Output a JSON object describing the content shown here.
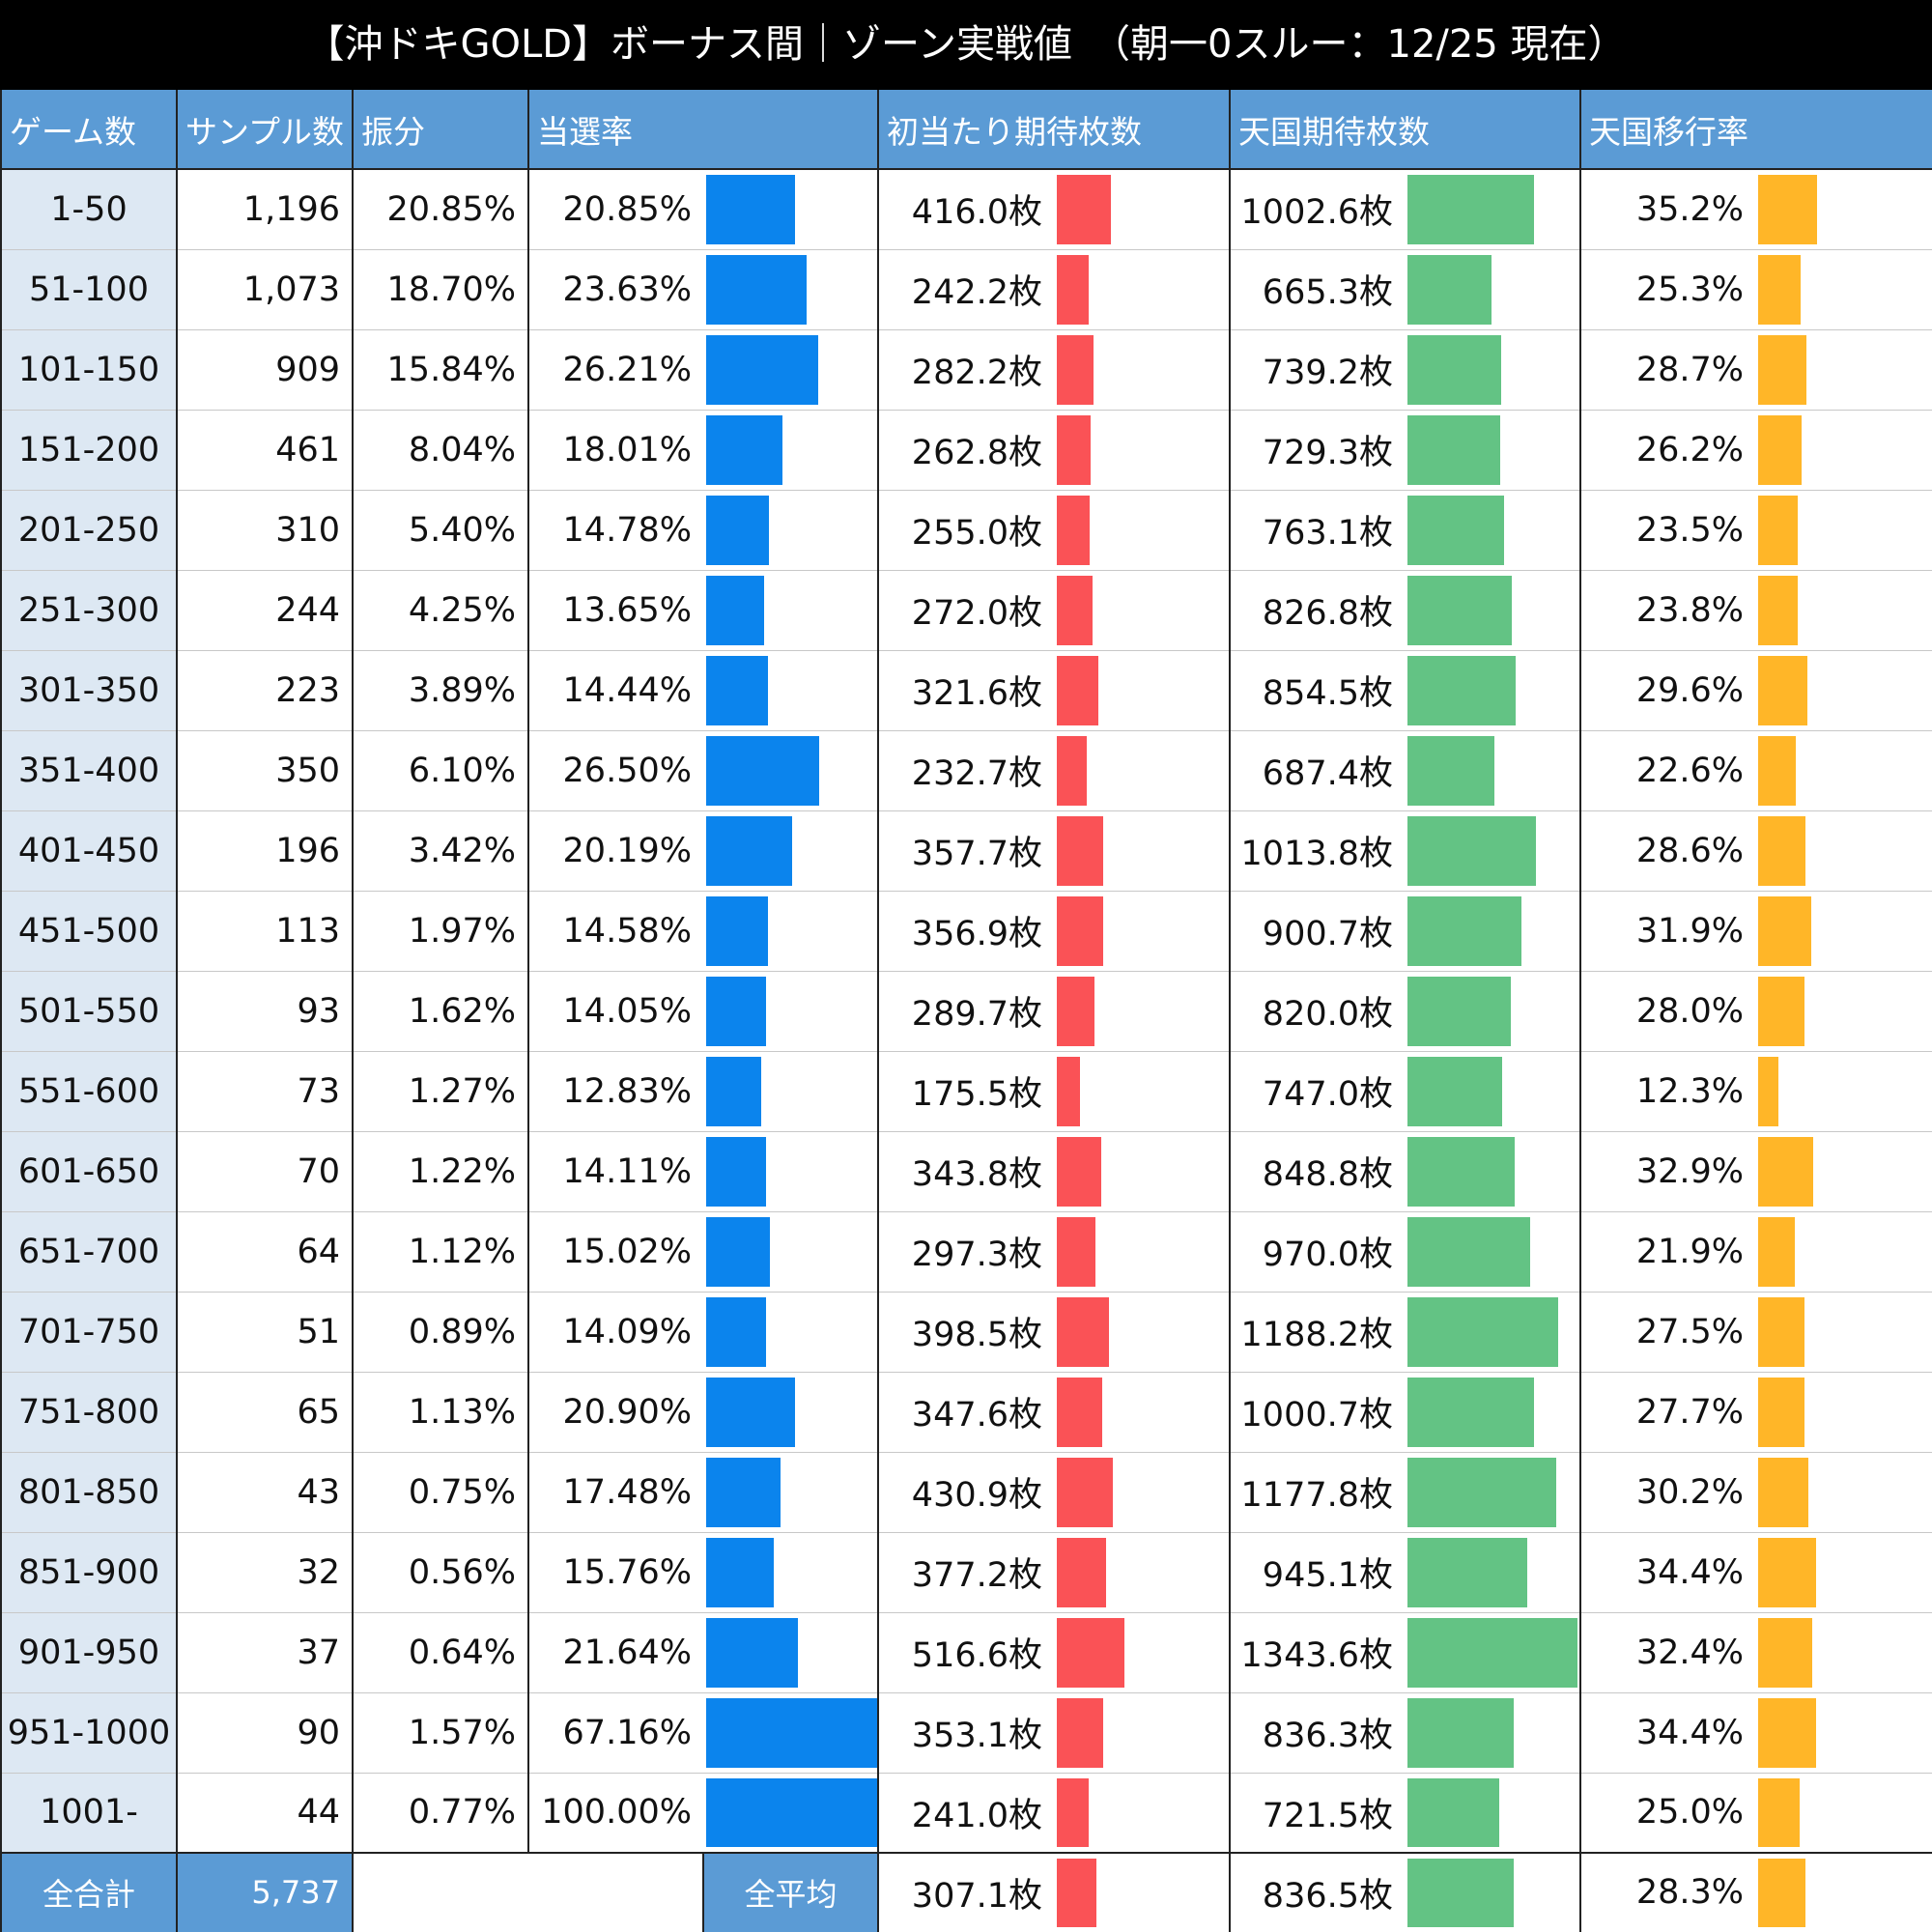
{
  "title": "【沖ドキGOLD】ボーナス間｜ゾーン実戦値　（朝一0スルー：12/25 現在）",
  "table": {
    "headers": [
      "ゲーム数",
      "サンプル数",
      "振分",
      "当選率",
      "初当たり期待枚数",
      "天国期待枚数",
      "天国移行率"
    ],
    "rows": [
      [
        "1-50",
        "1,196",
        "20.85%",
        {
          "value": 20.85,
          "label": "20.85%"
        },
        {
          "value": 416.0,
          "label": "416.0枚"
        },
        {
          "value": 1002.6,
          "label": "1002.6枚"
        },
        {
          "value": 35.2,
          "label": "35.2%"
        }
      ],
      [
        "51-100",
        "1,073",
        "18.70%",
        {
          "value": 23.63,
          "label": "23.63%"
        },
        {
          "value": 242.2,
          "label": "242.2枚"
        },
        {
          "value": 665.3,
          "label": "665.3枚"
        },
        {
          "value": 25.3,
          "label": "25.3%"
        }
      ],
      [
        "101-150",
        "909",
        "15.84%",
        {
          "value": 26.21,
          "label": "26.21%"
        },
        {
          "value": 282.2,
          "label": "282.2枚"
        },
        {
          "value": 739.2,
          "label": "739.2枚"
        },
        {
          "value": 28.7,
          "label": "28.7%"
        }
      ],
      [
        "151-200",
        "461",
        "8.04%",
        {
          "value": 18.01,
          "label": "18.01%"
        },
        {
          "value": 262.8,
          "label": "262.8枚"
        },
        {
          "value": 729.3,
          "label": "729.3枚"
        },
        {
          "value": 26.2,
          "label": "26.2%"
        }
      ],
      [
        "201-250",
        "310",
        "5.40%",
        {
          "value": 14.78,
          "label": "14.78%"
        },
        {
          "value": 255.0,
          "label": "255.0枚"
        },
        {
          "value": 763.1,
          "label": "763.1枚"
        },
        {
          "value": 23.5,
          "label": "23.5%"
        }
      ],
      [
        "251-300",
        "244",
        "4.25%",
        {
          "value": 13.65,
          "label": "13.65%"
        },
        {
          "value": 272.0,
          "label": "272.0枚"
        },
        {
          "value": 826.8,
          "label": "826.8枚"
        },
        {
          "value": 23.8,
          "label": "23.8%"
        }
      ],
      [
        "301-350",
        "223",
        "3.89%",
        {
          "value": 14.44,
          "label": "14.44%"
        },
        {
          "value": 321.6,
          "label": "321.6枚"
        },
        {
          "value": 854.5,
          "label": "854.5枚"
        },
        {
          "value": 29.6,
          "label": "29.6%"
        }
      ],
      [
        "351-400",
        "350",
        "6.10%",
        {
          "value": 26.5,
          "label": "26.50%"
        },
        {
          "value": 232.7,
          "label": "232.7枚"
        },
        {
          "value": 687.4,
          "label": "687.4枚"
        },
        {
          "value": 22.6,
          "label": "22.6%"
        }
      ],
      [
        "401-450",
        "196",
        "3.42%",
        {
          "value": 20.19,
          "label": "20.19%"
        },
        {
          "value": 357.7,
          "label": "357.7枚"
        },
        {
          "value": 1013.8,
          "label": "1013.8枚"
        },
        {
          "value": 28.6,
          "label": "28.6%"
        }
      ],
      [
        "451-500",
        "113",
        "1.97%",
        {
          "value": 14.58,
          "label": "14.58%"
        },
        {
          "value": 356.9,
          "label": "356.9枚"
        },
        {
          "value": 900.7,
          "label": "900.7枚"
        },
        {
          "value": 31.9,
          "label": "31.9%"
        }
      ],
      [
        "501-550",
        "93",
        "1.62%",
        {
          "value": 14.05,
          "label": "14.05%"
        },
        {
          "value": 289.7,
          "label": "289.7枚"
        },
        {
          "value": 820.0,
          "label": "820.0枚"
        },
        {
          "value": 28.0,
          "label": "28.0%"
        }
      ],
      [
        "551-600",
        "73",
        "1.27%",
        {
          "value": 12.83,
          "label": "12.83%"
        },
        {
          "value": 175.5,
          "label": "175.5枚"
        },
        {
          "value": 747.0,
          "label": "747.0枚"
        },
        {
          "value": 12.3,
          "label": "12.3%"
        }
      ],
      [
        "601-650",
        "70",
        "1.22%",
        {
          "value": 14.11,
          "label": "14.11%"
        },
        {
          "value": 343.8,
          "label": "343.8枚"
        },
        {
          "value": 848.8,
          "label": "848.8枚"
        },
        {
          "value": 32.9,
          "label": "32.9%"
        }
      ],
      [
        "651-700",
        "64",
        "1.12%",
        {
          "value": 15.02,
          "label": "15.02%"
        },
        {
          "value": 297.3,
          "label": "297.3枚"
        },
        {
          "value": 970.0,
          "label": "970.0枚"
        },
        {
          "value": 21.9,
          "label": "21.9%"
        }
      ],
      [
        "701-750",
        "51",
        "0.89%",
        {
          "value": 14.09,
          "label": "14.09%"
        },
        {
          "value": 398.5,
          "label": "398.5枚"
        },
        {
          "value": 1188.2,
          "label": "1188.2枚"
        },
        {
          "value": 27.5,
          "label": "27.5%"
        }
      ],
      [
        "751-800",
        "65",
        "1.13%",
        {
          "value": 20.9,
          "label": "20.90%"
        },
        {
          "value": 347.6,
          "label": "347.6枚"
        },
        {
          "value": 1000.7,
          "label": "1000.7枚"
        },
        {
          "value": 27.7,
          "label": "27.7%"
        }
      ],
      [
        "801-850",
        "43",
        "0.75%",
        {
          "value": 17.48,
          "label": "17.48%"
        },
        {
          "value": 430.9,
          "label": "430.9枚"
        },
        {
          "value": 1177.8,
          "label": "1177.8枚"
        },
        {
          "value": 30.2,
          "label": "30.2%"
        }
      ],
      [
        "851-900",
        "32",
        "0.56%",
        {
          "value": 15.76,
          "label": "15.76%"
        },
        {
          "value": 377.2,
          "label": "377.2枚"
        },
        {
          "value": 945.1,
          "label": "945.1枚"
        },
        {
          "value": 34.4,
          "label": "34.4%"
        }
      ],
      [
        "901-950",
        "37",
        "0.64%",
        {
          "value": 21.64,
          "label": "21.64%"
        },
        {
          "value": 516.6,
          "label": "516.6枚"
        },
        {
          "value": 1343.6,
          "label": "1343.6枚"
        },
        {
          "value": 32.4,
          "label": "32.4%"
        }
      ],
      [
        "951-1000",
        "90",
        "1.57%",
        {
          "value": 67.16,
          "label": "67.16%"
        },
        {
          "value": 353.1,
          "label": "353.1枚"
        },
        {
          "value": 836.3,
          "label": "836.3枚"
        },
        {
          "value": 34.4,
          "label": "34.4%"
        }
      ],
      [
        "1001-",
        "44",
        "0.77%",
        {
          "value": 100.0,
          "label": "100.00%"
        },
        {
          "value": 241.0,
          "label": "241.0枚"
        },
        {
          "value": 721.5,
          "label": "721.5枚"
        },
        {
          "value": 25.0,
          "label": "25.0%"
        }
      ]
    ],
    "footer": {
      "total_label": "全合計",
      "total_samples": "5,737",
      "average_label": "全平均",
      "first": {
        "value": 307.1,
        "label": "307.1枚"
      },
      "heaven": {
        "value": 836.5,
        "label": "836.5枚"
      },
      "move": {
        "value": 28.3,
        "label": "28.3%"
      }
    }
  }
}
